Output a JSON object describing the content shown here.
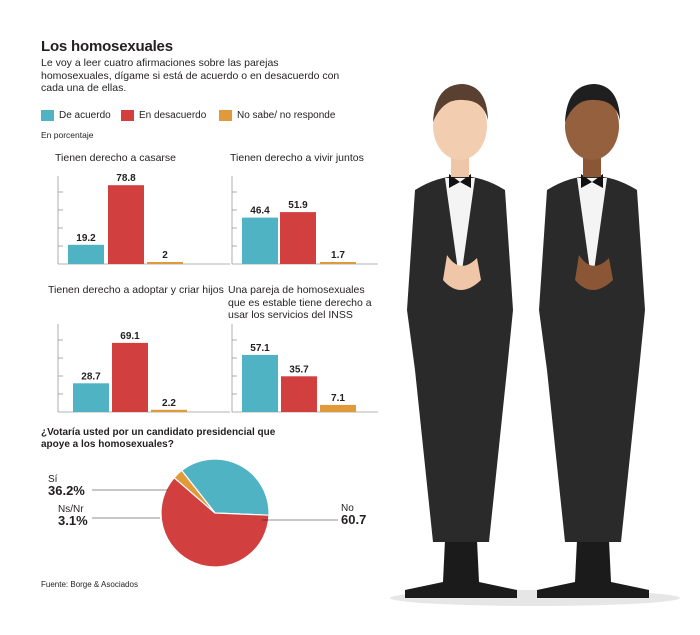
{
  "title": "Los homosexuales",
  "intro": "Le voy a leer cuatro afirmaciones sobre las parejas homosexuales, dígame si está de acuerdo o en desacuerdo con cada una de ellas.",
  "legend": [
    {
      "label": "De acuerdo",
      "color": "#4fb3c4"
    },
    {
      "label": "En desacuerdo",
      "color": "#d13f3f"
    },
    {
      "label": "No sabe/ no responde",
      "color": "#e09a3a"
    }
  ],
  "unit_note": "En porcentaje",
  "source": "Fuente: Borge & Asociados",
  "chart_data": [
    {
      "type": "bar",
      "title": "Tienen derecho a casarse",
      "categories": [
        "De acuerdo",
        "En desacuerdo",
        "No sabe/ no responde"
      ],
      "values": [
        19.2,
        78.8,
        2
      ],
      "labels": [
        "19.2",
        "78.8",
        "2"
      ]
    },
    {
      "type": "bar",
      "title": "Tienen derecho a vivir juntos",
      "categories": [
        "De acuerdo",
        "En desacuerdo",
        "No sabe/ no responde"
      ],
      "values": [
        46.4,
        51.9,
        1.7
      ],
      "labels": [
        "46.4",
        "51.9",
        "1.7"
      ]
    },
    {
      "type": "bar",
      "title": "Tienen derecho a adoptar y criar hijos",
      "categories": [
        "De acuerdo",
        "En desacuerdo",
        "No sabe/ no responde"
      ],
      "values": [
        28.7,
        69.1,
        2.2
      ],
      "labels": [
        "28.7",
        "69.1",
        "2.2"
      ]
    },
    {
      "type": "bar",
      "title": "Una pareja de homosexuales que es estable tiene derecho a usar los servicios del INSS",
      "categories": [
        "De acuerdo",
        "En desacuerdo",
        "No sabe/ no responde"
      ],
      "values": [
        57.1,
        35.7,
        7.1
      ],
      "labels": [
        "57.1",
        "35.7",
        "7.1"
      ]
    },
    {
      "type": "pie",
      "title": "¿Votaría usted por un candidato presidencial que apoye a los homosexuales?",
      "slices": [
        {
          "label": "Sí",
          "value": 36.2,
          "value_label": "36.2%",
          "color": "#4fb3c4"
        },
        {
          "label": "No",
          "value": 60.7,
          "value_label": "60.7",
          "color": "#d13f3f"
        },
        {
          "label": "Ns/Nr",
          "value": 3.1,
          "value_label": "3.1%",
          "color": "#e09a3a"
        }
      ]
    }
  ]
}
